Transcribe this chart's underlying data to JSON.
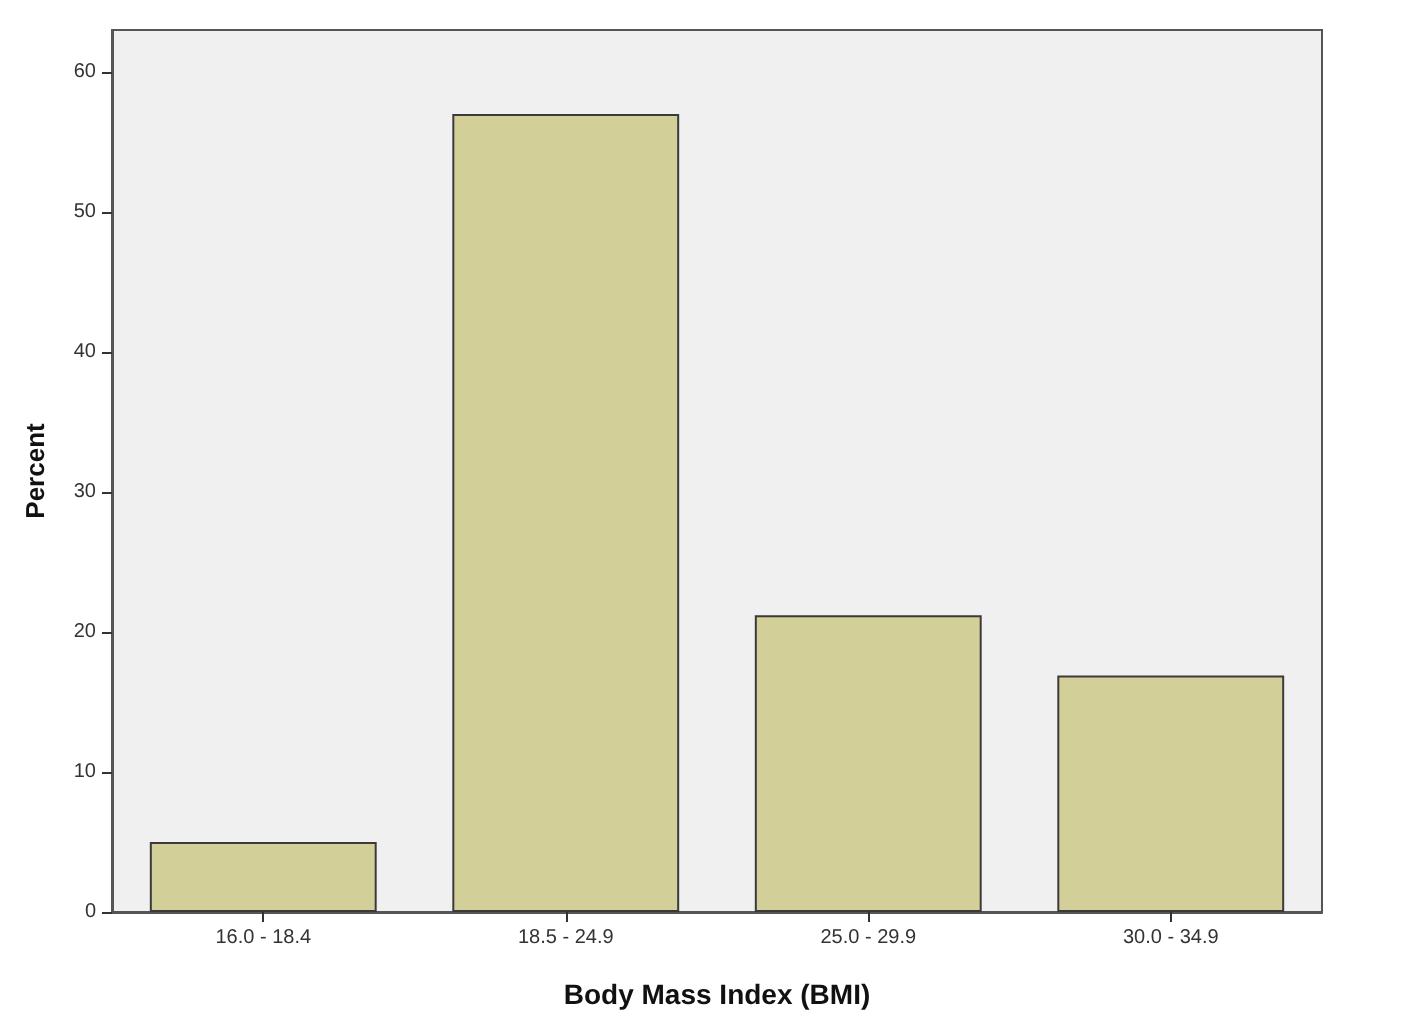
{
  "chart_data": {
    "type": "bar",
    "xlabel": "Body Mass Index (BMI)",
    "ylabel": "Percent",
    "categories": [
      "16.0 - 18.4",
      "18.5 - 24.9",
      "25.0 - 29.9",
      "30.0 - 34.9"
    ],
    "values": [
      5.0,
      57.0,
      21.2,
      16.9
    ],
    "color": "#d3cf98",
    "ylim": [
      0,
      63
    ],
    "yticks": [
      0,
      10,
      20,
      30,
      40,
      50,
      60
    ],
    "grid": false
  }
}
